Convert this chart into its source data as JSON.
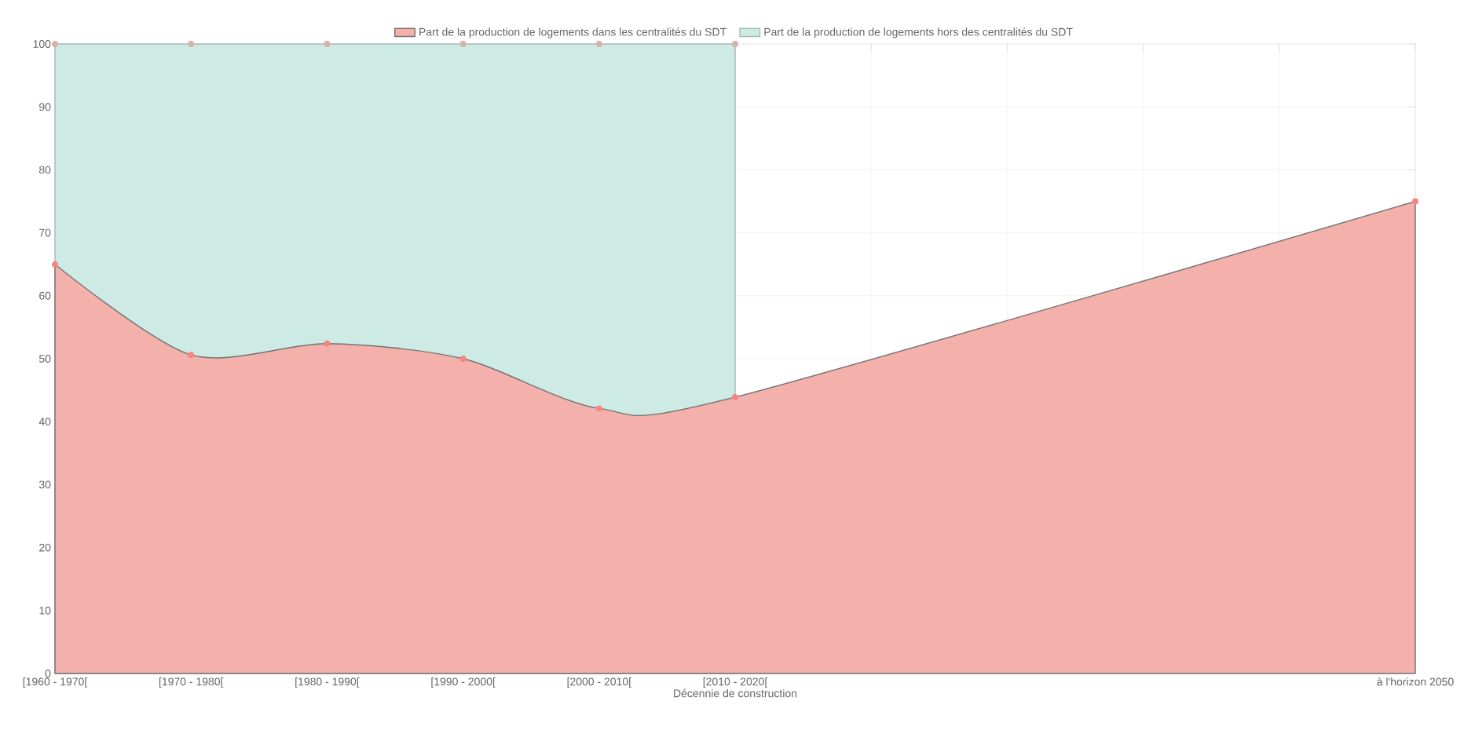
{
  "chart_data": {
    "type": "area",
    "stacked": true,
    "xlabel": "Décennie de construction",
    "categories": [
      "[1960 - 1970[",
      "[1970 - 1980[",
      "[1980 - 1990[",
      "[1990 - 2000[",
      "[2000 - 2010[",
      "[2010 - 2020[",
      null,
      null,
      null,
      null,
      "à l'horizon 2050"
    ],
    "series": [
      {
        "name": "Part de la production de logements dans les centralités du SDT",
        "color": "#f4b1ab",
        "values": [
          65,
          50.6,
          52.4,
          50,
          42.1,
          43.9,
          null,
          null,
          null,
          null,
          75
        ]
      },
      {
        "name": "Part de la production de logements hors des centralités du SDT",
        "color": "#cdeae4",
        "values": [
          35,
          49.4,
          47.6,
          50,
          57.9,
          56.1,
          null,
          null,
          null,
          null,
          null
        ]
      }
    ],
    "ylim": [
      0,
      100
    ],
    "yticks": [
      0,
      10,
      20,
      30,
      40,
      50,
      60,
      70,
      80,
      90,
      100
    ],
    "grid": true,
    "legend": "top",
    "marker": "circle"
  }
}
